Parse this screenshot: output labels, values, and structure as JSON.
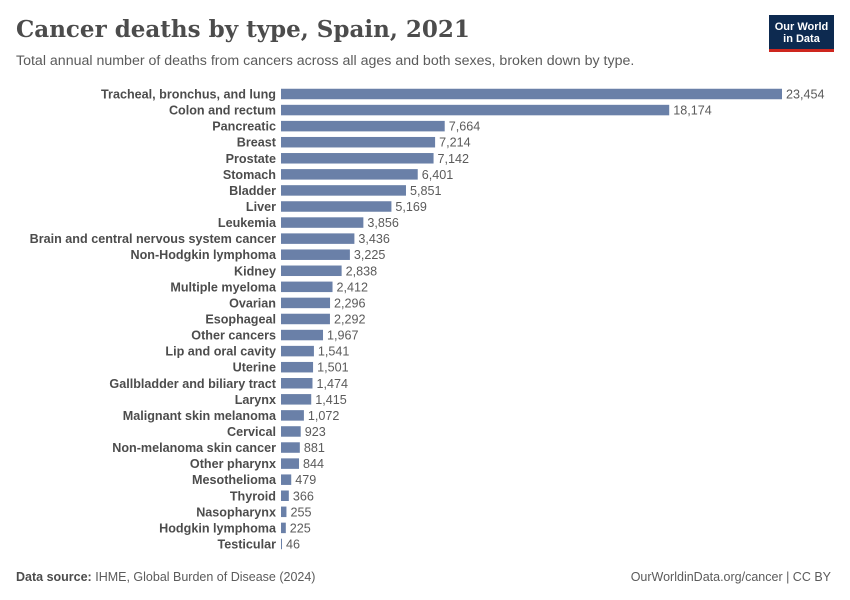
{
  "header": {
    "title": "Cancer deaths by type, Spain, 2021",
    "subtitle": "Total annual number of deaths from cancers across all ages and both sexes, broken down by type."
  },
  "logo": {
    "line1": "Our World",
    "line2": "in Data"
  },
  "footer": {
    "source_label": "Data source:",
    "source_text": "IHME, Global Burden of Disease (2024)",
    "url_text": "OurWorldinData.org/cancer | CC BY"
  },
  "colors": {
    "bar": "#6a80a8",
    "label": "#4c4c4c",
    "value": "#5b5b5b"
  },
  "chart_data": {
    "type": "bar",
    "orientation": "horizontal",
    "title": "Cancer deaths by type, Spain, 2021",
    "xlabel": "",
    "ylabel": "",
    "xlim": [
      0,
      23454
    ],
    "categories": [
      "Tracheal, bronchus, and lung",
      "Colon and rectum",
      "Pancreatic",
      "Breast",
      "Prostate",
      "Stomach",
      "Bladder",
      "Liver",
      "Leukemia",
      "Brain and central nervous system cancer",
      "Non-Hodgkin lymphoma",
      "Kidney",
      "Multiple myeloma",
      "Ovarian",
      "Esophageal",
      "Other cancers",
      "Lip and oral cavity",
      "Uterine",
      "Gallbladder and biliary tract",
      "Larynx",
      "Malignant skin melanoma",
      "Cervical",
      "Non-melanoma skin cancer",
      "Other pharynx",
      "Mesothelioma",
      "Thyroid",
      "Nasopharynx",
      "Hodgkin lymphoma",
      "Testicular"
    ],
    "values": [
      23454,
      18174,
      7664,
      7214,
      7142,
      6401,
      5851,
      5169,
      3856,
      3436,
      3225,
      2838,
      2412,
      2296,
      2292,
      1967,
      1541,
      1501,
      1474,
      1415,
      1072,
      923,
      881,
      844,
      479,
      366,
      255,
      225,
      46
    ],
    "value_labels": [
      "23,454",
      "18,174",
      "7,664",
      "7,214",
      "7,142",
      "6,401",
      "5,851",
      "5,169",
      "3,856",
      "3,436",
      "3,225",
      "2,838",
      "2,412",
      "2,296",
      "2,292",
      "1,967",
      "1,541",
      "1,501",
      "1,474",
      "1,415",
      "1,072",
      "923",
      "881",
      "844",
      "479",
      "366",
      "255",
      "225",
      "46"
    ]
  }
}
